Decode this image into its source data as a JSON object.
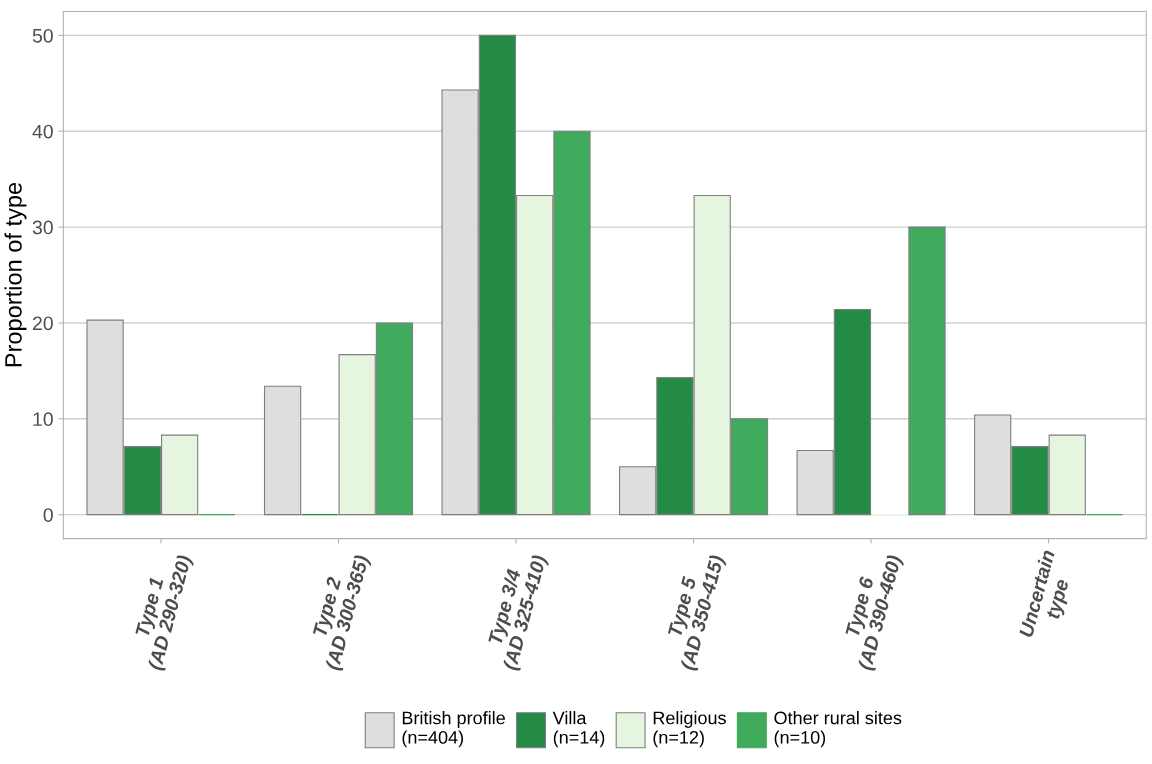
{
  "chart_data": {
    "type": "bar",
    "ylabel": "Proportion of type",
    "categories": [
      "Type 1\n(AD 290-320)",
      "Type 2\n(AD 300-365)",
      "Type 3/4\n(AD 325-410)",
      "Type 5\n(AD 350-415)",
      "Type 6\n(AD 390-460)",
      "Uncertain\ntype"
    ],
    "series": [
      {
        "name": "British profile\n(n=404)",
        "color": "#dedede",
        "values": [
          20.3,
          13.4,
          44.3,
          5.0,
          6.7,
          10.4
        ]
      },
      {
        "name": "Villa\n(n=14)",
        "color": "#238b45",
        "values": [
          7.1,
          0,
          50,
          14.3,
          21.4,
          7.1
        ]
      },
      {
        "name": "Religious\n(n=12)",
        "color": "#e5f5e0",
        "values": [
          8.3,
          16.7,
          33.3,
          33.3,
          0,
          8.3
        ]
      },
      {
        "name": "Other rural sites\n(n=10)",
        "color": "#41ab5d",
        "values": [
          0,
          20,
          40,
          10,
          30,
          0
        ]
      }
    ],
    "ylim": [
      -2.5,
      52.5
    ],
    "yticks": [
      0,
      10,
      20,
      30,
      40,
      50
    ],
    "grid": "y",
    "legend": "bottom"
  }
}
